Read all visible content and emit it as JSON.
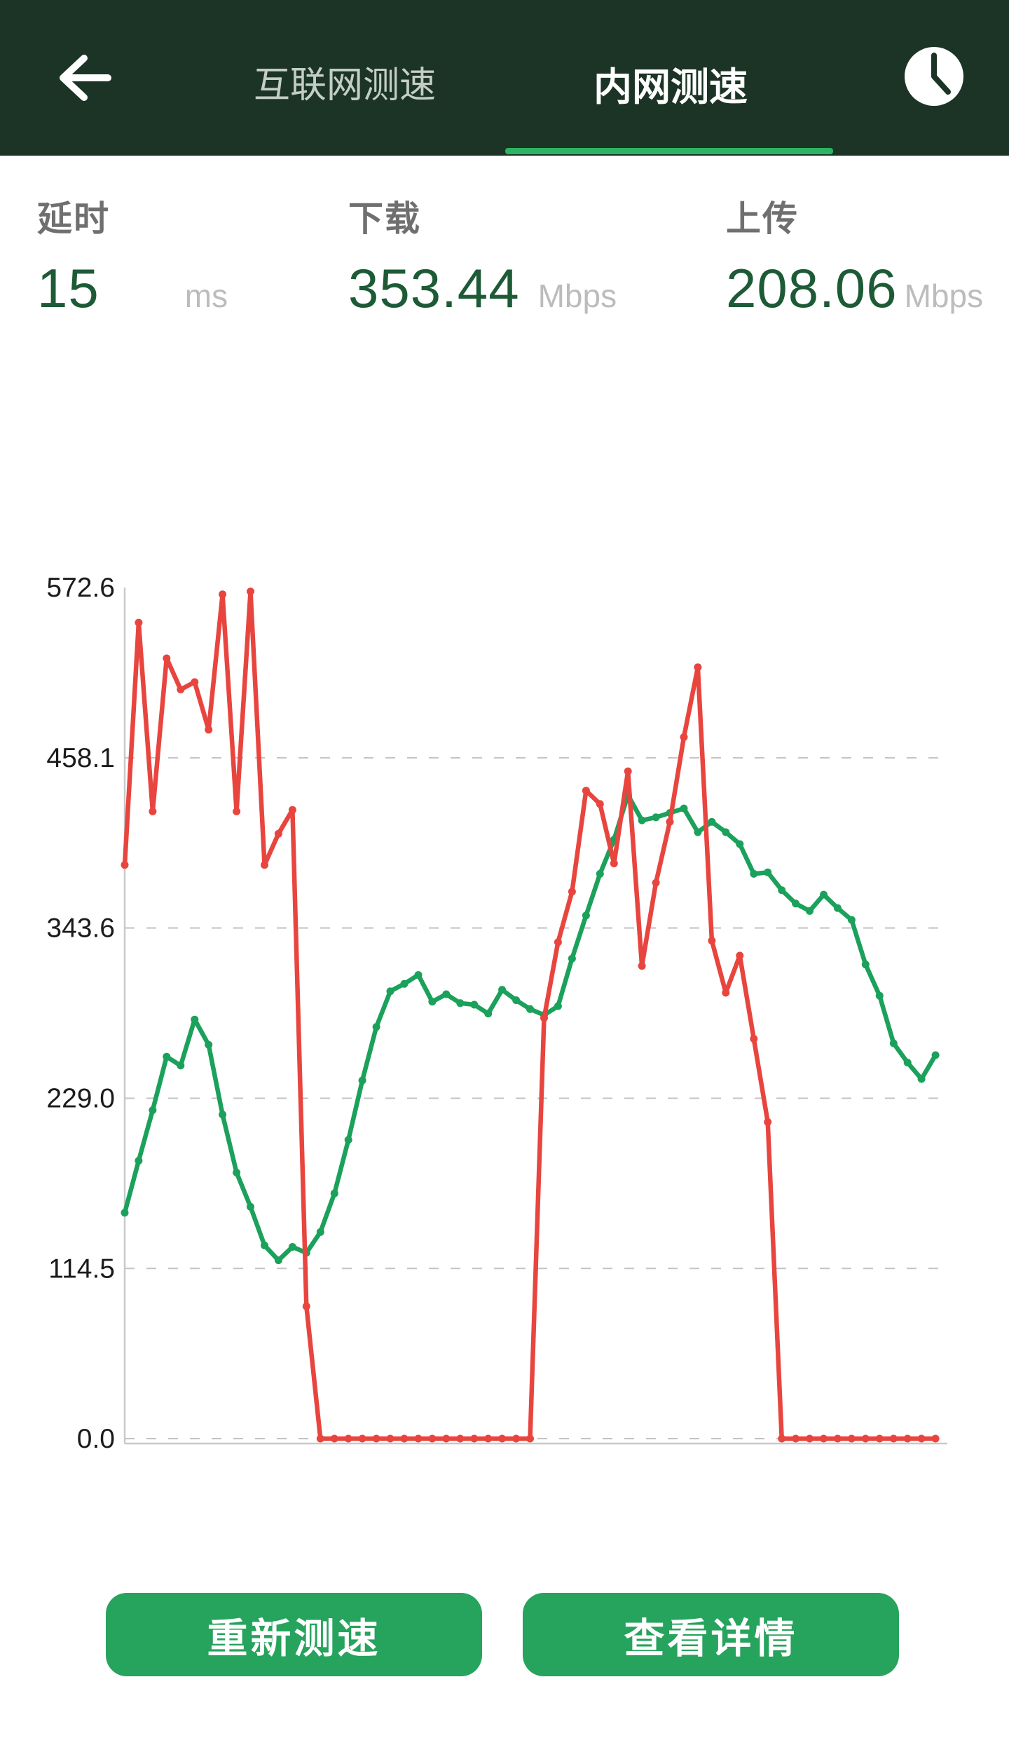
{
  "header": {
    "back_icon": "arrow-left",
    "tabs": [
      {
        "label": "互联网测速",
        "active": false
      },
      {
        "label": "内网测速",
        "active": true
      }
    ],
    "history_icon": "clock"
  },
  "stats": {
    "latency": {
      "label": "延时",
      "value": "15",
      "unit": "ms"
    },
    "download": {
      "label": "下载",
      "value": "353.44",
      "unit": "Mbps"
    },
    "upload": {
      "label": "上传",
      "value": "208.06",
      "unit": "Mbps"
    }
  },
  "chart_data": {
    "type": "line",
    "title": "",
    "xlabel": "",
    "ylabel": "",
    "ylim": [
      0,
      572.6
    ],
    "y_ticks": [
      "572.6",
      "458.1",
      "343.6",
      "229.0",
      "114.5",
      "0.0"
    ],
    "x_tick_labels": [],
    "grid": "dashed-horizontal",
    "legend": "none",
    "series": [
      {
        "name": "green-upload-curve",
        "color": "#1ba15b",
        "values": [
          152,
          187,
          221,
          257,
          251,
          282,
          265,
          218,
          179,
          156,
          130,
          120,
          129,
          125,
          139,
          165,
          201,
          241,
          277,
          301,
          306,
          312,
          294,
          299,
          293,
          292,
          286,
          302,
          295,
          289,
          285,
          291,
          323,
          352,
          380,
          403,
          433,
          416,
          418,
          421,
          424,
          408,
          415,
          408,
          400,
          380,
          381,
          369,
          360,
          355,
          366,
          357,
          349,
          319,
          298,
          266,
          253,
          242,
          258
        ]
      },
      {
        "name": "red-download-curve",
        "color": "#e8453f",
        "values": [
          386,
          549,
          422,
          525,
          504,
          509,
          477,
          568,
          422,
          570,
          386,
          407,
          423,
          89,
          0,
          0,
          0,
          0,
          0,
          0,
          0,
          0,
          0,
          0,
          0,
          0,
          0,
          0,
          0,
          0,
          283,
          334,
          368,
          436,
          427,
          387,
          449,
          318,
          374,
          415,
          472,
          519,
          335,
          300,
          325,
          269,
          213,
          0,
          0,
          0,
          0,
          0,
          0,
          0,
          0,
          0,
          0,
          0,
          0
        ]
      }
    ]
  },
  "buttons": {
    "retest": {
      "label": "重新测速"
    },
    "details": {
      "label": "查看详情"
    }
  },
  "colors": {
    "header_bg": "#1c3426",
    "tab_active_text": "#ffffff",
    "tab_inactive_text": "#c4cec6",
    "tab_underline": "#2cb463",
    "stat_label": "#6f6f6f",
    "stat_value": "#1d5a36",
    "stat_unit": "#bcbcbc",
    "line_red": "#e8453f",
    "line_green": "#1ba15b",
    "gridline": "#c3c3c3",
    "axis": "#c9c9c9",
    "tick_label": "#1b1b1b",
    "button_bg": "#26a35c",
    "button_text": "#ffffff"
  }
}
